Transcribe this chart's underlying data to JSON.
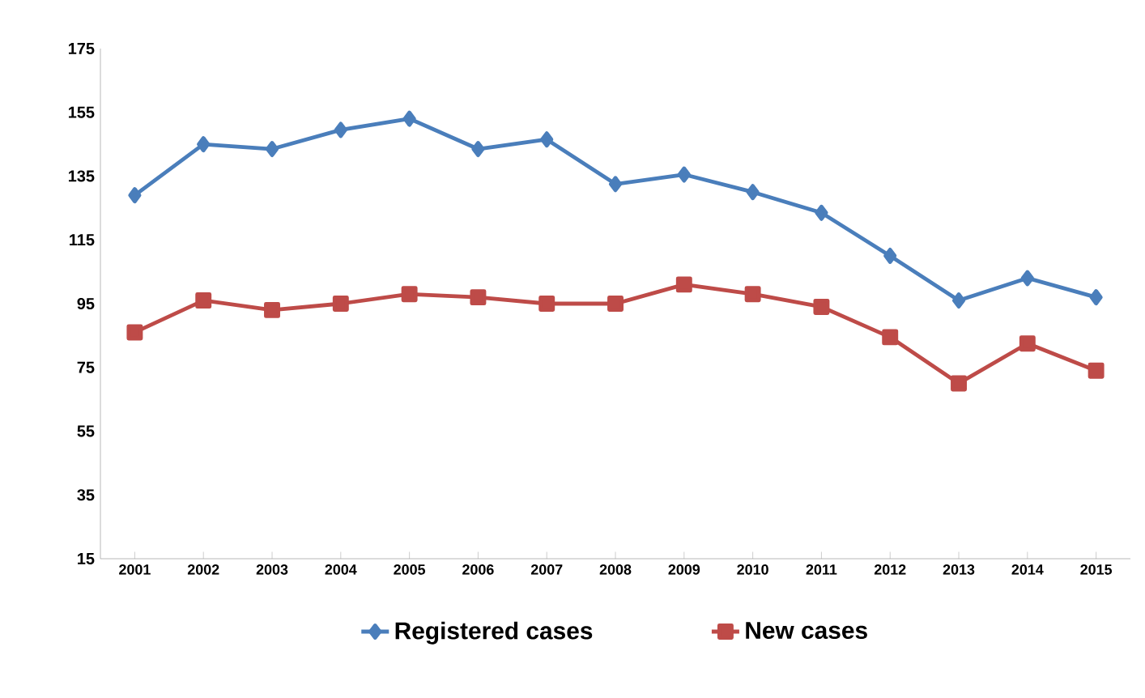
{
  "chart_data": {
    "type": "line",
    "categories": [
      "2001",
      "2002",
      "2003",
      "2004",
      "2005",
      "2006",
      "2007",
      "2008",
      "2009",
      "2010",
      "2011",
      "2012",
      "2013",
      "2014",
      "2015"
    ],
    "series": [
      {
        "name": "Registered cases",
        "color": "#4a7ebb",
        "marker": "diamond",
        "values": [
          129,
          145,
          143.5,
          149.5,
          153,
          143.5,
          146.5,
          132.5,
          135.5,
          130,
          123.5,
          110,
          96,
          103,
          97
        ]
      },
      {
        "name": "New cases",
        "color": "#be4b48",
        "marker": "square",
        "values": [
          86,
          96,
          93,
          95,
          98,
          97,
          95,
          95,
          101,
          98,
          94,
          84.5,
          70,
          82.5,
          74
        ]
      }
    ],
    "ylim": [
      15,
      175
    ],
    "yticks": [
      15,
      35,
      55,
      75,
      95,
      115,
      135,
      155,
      175
    ],
    "grid": false,
    "legend": "bottom",
    "line_style": "solid"
  }
}
